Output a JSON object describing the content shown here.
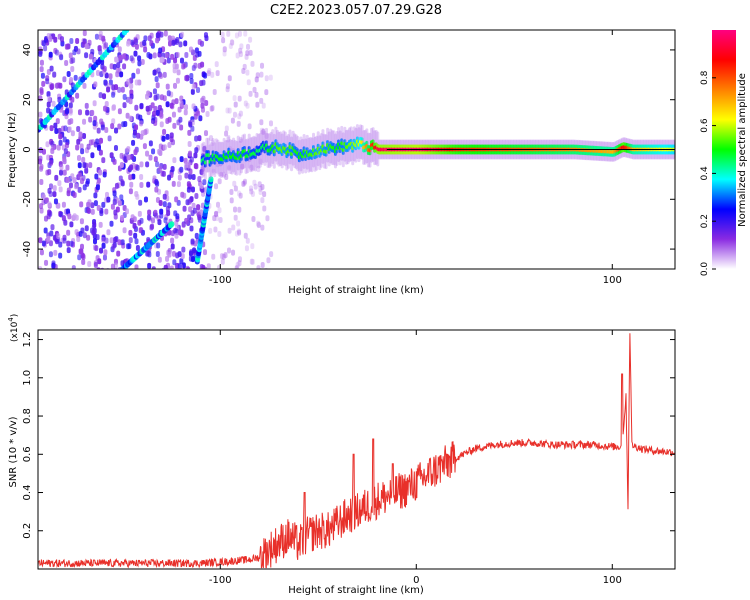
{
  "title": "C2E2.2023.057.07.29.G28",
  "chart_data": [
    {
      "type": "heatmap",
      "xlabel": "Height of straight line (km)",
      "ylabel": "Frequency (Hz)",
      "xlim": [
        -193,
        132
      ],
      "ylim": [
        -48,
        48
      ],
      "x_ticks": [
        -100,
        100
      ],
      "x_tick_labels": [
        "-100",
        "100"
      ],
      "y_ticks": [
        -40,
        -20,
        0,
        20,
        40
      ],
      "y_tick_labels": [
        "-40",
        "-20",
        "0",
        "20",
        "40"
      ],
      "colorbar": {
        "label": "Normalized spectral amplitude",
        "range": [
          0.0,
          1.0
        ],
        "ticks": [
          0.0,
          0.2,
          0.4,
          0.6,
          0.8
        ],
        "tick_labels": [
          "0.0",
          "0.2",
          "0.4",
          "0.6",
          "0.8"
        ],
        "colormap": [
          "#ffffff",
          "#8a2be2",
          "#0000ff",
          "#00ffff",
          "#00ff00",
          "#ffff00",
          "#ff8000",
          "#ff0000",
          "#ff0080"
        ]
      },
      "ridge": {
        "x": [
          -110,
          -100,
          -90,
          -80,
          -70,
          -60,
          -50,
          -40,
          -30,
          -20,
          0,
          20,
          50,
          80,
          100,
          105,
          110,
          132
        ],
        "y": [
          -4,
          -3,
          -2,
          0,
          1,
          -2,
          0,
          1,
          2,
          0,
          0,
          0,
          0,
          0,
          -1,
          1,
          0,
          0
        ],
        "amplitude": [
          0.45,
          0.5,
          0.5,
          0.45,
          0.55,
          0.5,
          0.55,
          0.5,
          0.6,
          0.95,
          0.98,
          0.85,
          0.8,
          0.75,
          0.7,
          0.9,
          0.7,
          0.6
        ]
      },
      "diagonal_streaks": [
        {
          "x": [
            -193,
            -148
          ],
          "y": [
            8,
            48
          ]
        },
        {
          "x": [
            -150,
            -125
          ],
          "y": [
            -48,
            -30
          ]
        },
        {
          "x": [
            -112,
            -105
          ],
          "y": [
            -45,
            -12
          ]
        }
      ]
    },
    {
      "type": "line",
      "xlabel": "Height of straight line (km)",
      "ylabel": "SNR (10 * v/v)",
      "y_scale_label": "(x10",
      "y_scale_exp": "4",
      "y_scale_close": ")",
      "xlim": [
        -193,
        132
      ],
      "ylim": [
        0.0,
        1.25
      ],
      "x_ticks": [
        -100,
        0,
        100
      ],
      "x_tick_labels": [
        "-100",
        "0",
        "100"
      ],
      "y_ticks": [
        0.2,
        0.4,
        0.6,
        0.8,
        1.0,
        1.2
      ],
      "y_tick_labels": [
        "0.2",
        "0.4",
        "0.6",
        "0.8",
        "1.0",
        "1.2"
      ],
      "color": "#e8302a",
      "series": [
        {
          "x": [
            -193,
            -150,
            -110,
            -95,
            -85,
            -80,
            -75,
            -70,
            -65,
            -60,
            -55,
            -50,
            -45,
            -40,
            -35,
            -30,
            -25,
            -20,
            -15,
            -10,
            -5,
            0,
            10,
            20,
            30,
            40,
            50,
            60,
            70,
            80,
            90,
            100,
            105,
            107,
            108,
            109,
            110,
            112,
            115,
            120,
            132
          ],
          "y": [
            0.03,
            0.03,
            0.03,
            0.04,
            0.05,
            0.06,
            0.1,
            0.14,
            0.17,
            0.13,
            0.18,
            0.2,
            0.2,
            0.24,
            0.28,
            0.3,
            0.33,
            0.36,
            0.38,
            0.4,
            0.42,
            0.45,
            0.52,
            0.58,
            0.63,
            0.65,
            0.66,
            0.66,
            0.65,
            0.65,
            0.65,
            0.64,
            0.64,
            0.9,
            0.32,
            1.25,
            0.65,
            0.64,
            0.63,
            0.62,
            0.61
          ]
        }
      ],
      "noise_spikes": [
        {
          "x": -57,
          "y": 0.4
        },
        {
          "x": -32,
          "y": 0.6
        },
        {
          "x": -22,
          "y": 0.68
        },
        {
          "x": -12,
          "y": 0.55
        },
        {
          "x": 105,
          "y": 1.02
        }
      ]
    }
  ]
}
